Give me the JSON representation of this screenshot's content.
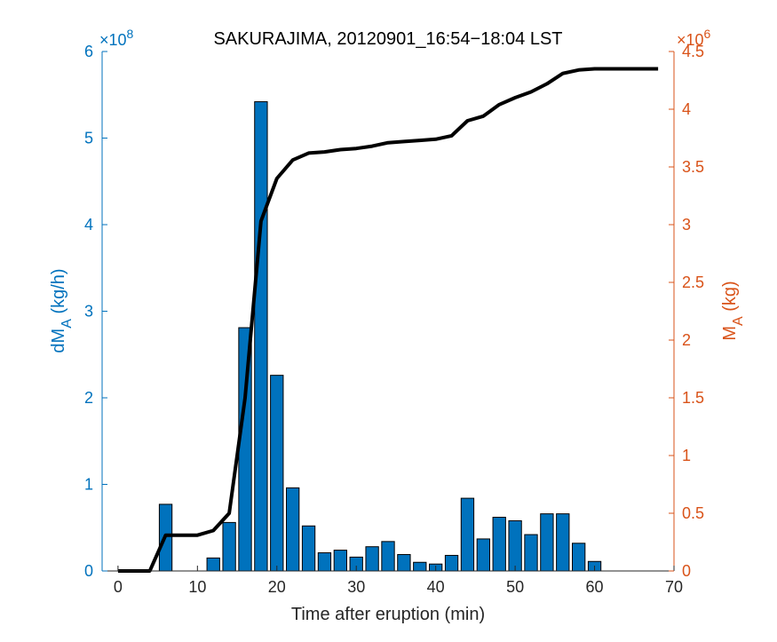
{
  "chart_data": {
    "type": "bar+line",
    "title": "SAKURAJIMA, 20120901_16:54−18:04 LST",
    "xlabel": "Time after eruption (min)",
    "xlim": [
      -2,
      70
    ],
    "xticks": [
      "0",
      "10",
      "20",
      "30",
      "40",
      "50",
      "60",
      "70"
    ],
    "left_axis": {
      "label_main": "dM",
      "label_sub": "A",
      "label_unit": " (kg/h)",
      "exponent_base": "×10",
      "exponent_power": "8",
      "ylim": [
        0,
        6
      ],
      "ticks": [
        "0",
        "1",
        "2",
        "3",
        "4",
        "5",
        "6"
      ],
      "color": "#0072BD"
    },
    "right_axis": {
      "label_main": "M",
      "label_sub": "A",
      "label_unit": " (kg)",
      "exponent_base": "×10",
      "exponent_power": "6",
      "ylim": [
        0,
        4.5
      ],
      "ticks": [
        "0",
        "0.5",
        "1",
        "1.5",
        "2",
        "2.5",
        "3",
        "3.5",
        "4",
        "4.5"
      ],
      "color": "#D95319"
    },
    "bar_series": {
      "x": [
        6,
        12,
        14,
        16,
        18,
        20,
        22,
        24,
        26,
        28,
        30,
        32,
        34,
        36,
        38,
        40,
        42,
        44,
        46,
        48,
        50,
        52,
        54,
        56,
        58,
        60
      ],
      "values": [
        0.77,
        0.15,
        0.56,
        2.81,
        5.42,
        2.26,
        0.96,
        0.52,
        0.21,
        0.24,
        0.16,
        0.28,
        0.34,
        0.19,
        0.1,
        0.08,
        0.18,
        0.84,
        0.37,
        0.62,
        0.58,
        0.42,
        0.66,
        0.66,
        0.32,
        0.11
      ],
      "color": "#0072BD"
    },
    "line_series": {
      "x": [
        0,
        4,
        6,
        8,
        10,
        12,
        14,
        16,
        18,
        20,
        22,
        24,
        26,
        28,
        30,
        32,
        34,
        36,
        38,
        40,
        42,
        44,
        46,
        48,
        50,
        52,
        54,
        56,
        58,
        60,
        62,
        64,
        66,
        68
      ],
      "values": [
        0,
        0,
        0.31,
        0.31,
        0.31,
        0.35,
        0.5,
        1.5,
        3.03,
        3.4,
        3.56,
        3.62,
        3.63,
        3.65,
        3.66,
        3.68,
        3.71,
        3.72,
        3.73,
        3.74,
        3.77,
        3.9,
        3.94,
        4.04,
        4.1,
        4.15,
        4.22,
        4.31,
        4.34,
        4.35,
        4.35,
        4.35,
        4.35,
        4.35
      ],
      "color": "#000000"
    }
  }
}
